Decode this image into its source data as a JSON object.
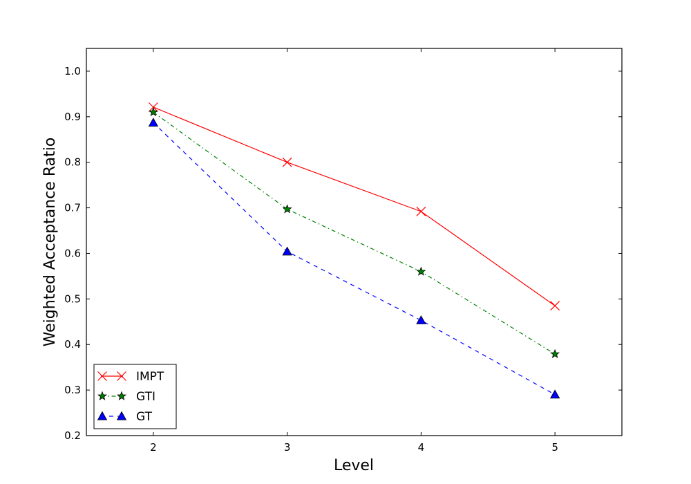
{
  "chart_data": {
    "type": "line",
    "title": "",
    "xlabel": "Level",
    "ylabel": "Weighted Acceptance Ratio",
    "x": [
      2,
      3,
      4,
      5
    ],
    "xlim": [
      1.5,
      5.5
    ],
    "ylim": [
      0.2,
      1.05
    ],
    "xticks": [
      "2",
      "3",
      "4",
      "5"
    ],
    "yticks": [
      "0.2",
      "0.3",
      "0.4",
      "0.5",
      "0.6",
      "0.7",
      "0.8",
      "0.9",
      "1.0"
    ],
    "grid": false,
    "legend_position": "lower-left",
    "series": [
      {
        "name": "IMPT",
        "values": [
          0.921,
          0.8,
          0.692,
          0.485
        ],
        "color": "#ff0000",
        "line_style": "solid",
        "marker": "x"
      },
      {
        "name": "GTI",
        "values": [
          0.91,
          0.697,
          0.56,
          0.379
        ],
        "color": "#008000",
        "line_style": "dash-dot",
        "marker": "star"
      },
      {
        "name": "GT",
        "values": [
          0.887,
          0.604,
          0.453,
          0.29
        ],
        "color": "#0000ff",
        "line_style": "dashed",
        "marker": "triangle"
      }
    ]
  }
}
